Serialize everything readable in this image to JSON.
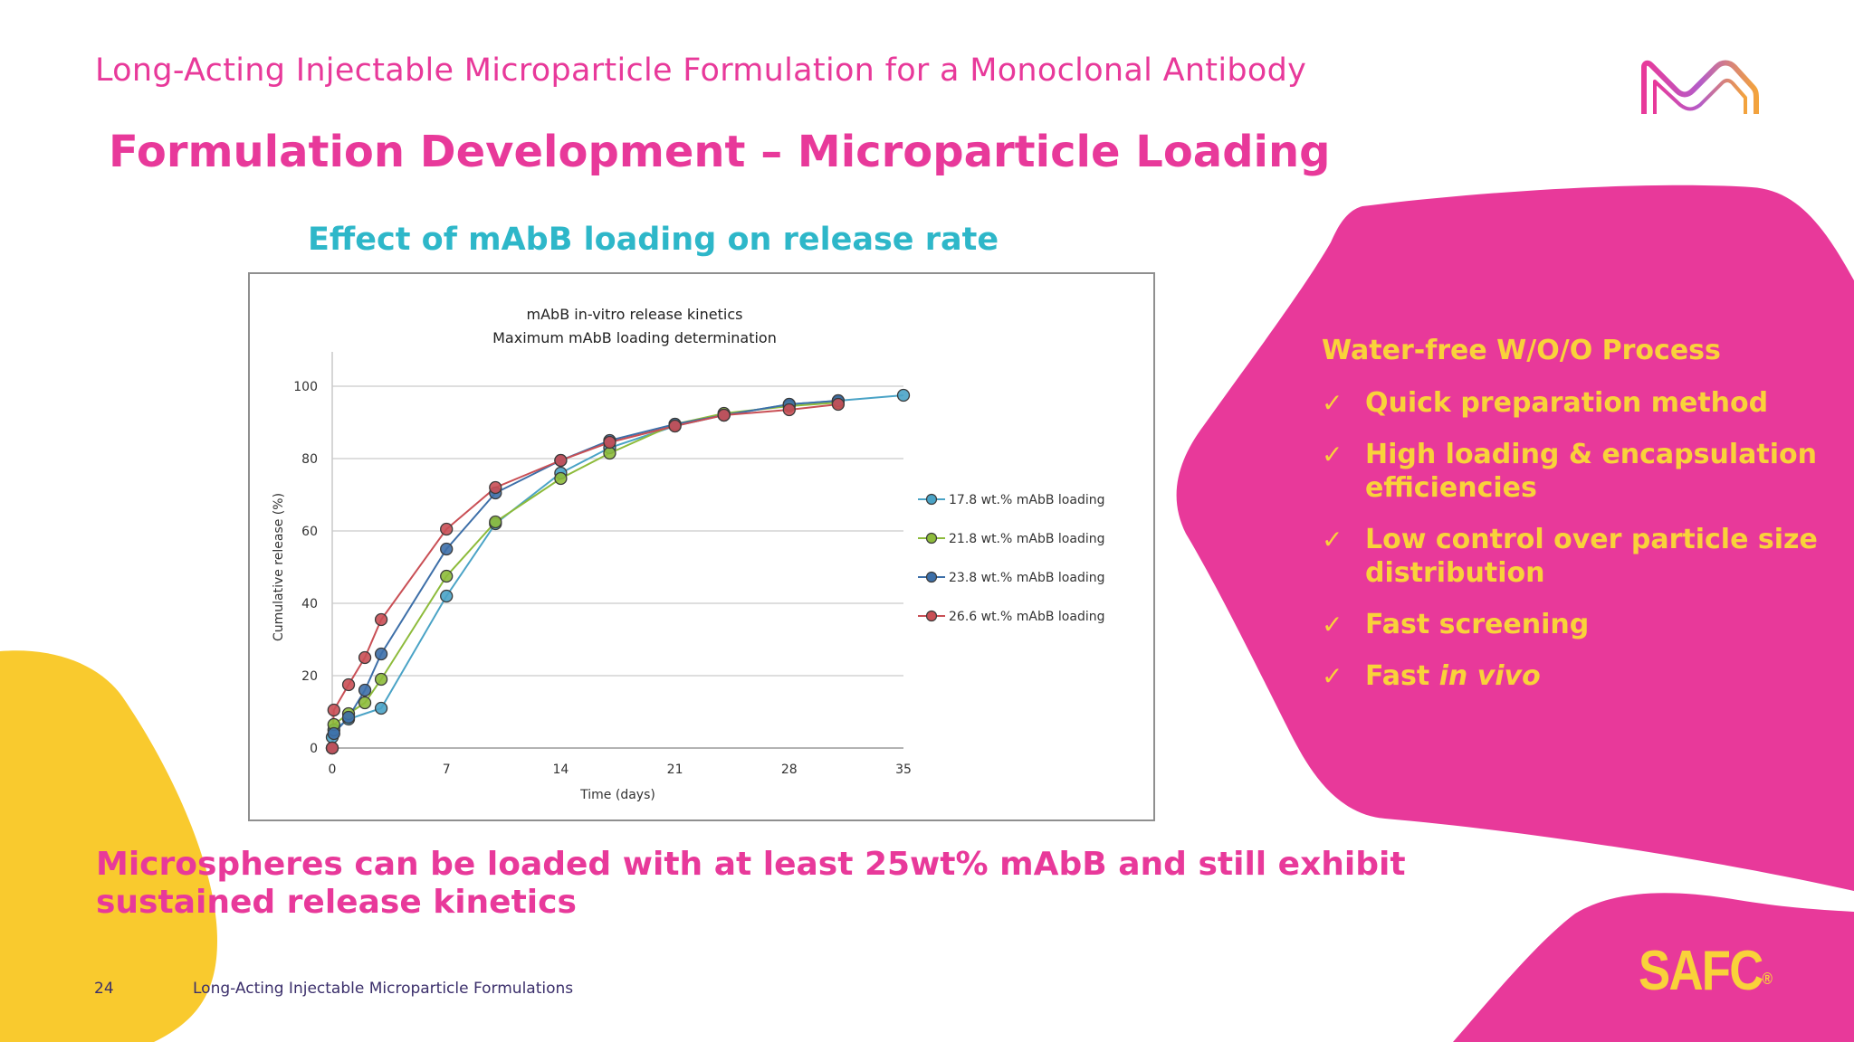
{
  "header": {
    "title": "Long-Acting Injectable Microparticle Formulation for a Monoclonal Antibody"
  },
  "slide": {
    "title": "Formulation Development – Microparticle Loading",
    "chart_heading": "Effect of mAbB loading on release rate",
    "conclusion": "Microspheres can be loaded with at least 25wt% mAbB and still exhibit sustained release kinetics"
  },
  "panel": {
    "title": "Water-free W/O/O Process",
    "check_symbol": "✓",
    "bullets": [
      {
        "text": "Quick preparation method"
      },
      {
        "text": "High loading & encapsulation efficiencies"
      },
      {
        "text": "Low control over particle size distribution"
      },
      {
        "text": "Fast screening"
      },
      {
        "text_plain": "Fast ",
        "text_italic": "in vivo"
      }
    ]
  },
  "footer": {
    "page_number": "24",
    "text": "Long-Acting Injectable Microparticle Formulations",
    "brand": "SAFC",
    "brand_mark": "®"
  },
  "colors": {
    "magenta": "#e8399a",
    "yellow": "#f9d23a",
    "teal": "#2eb7c9",
    "footer_text": "#3b2f6b"
  },
  "icons": {
    "logo": "merck-m-logo-icon"
  },
  "chart_data": {
    "type": "line",
    "title": "mAbB in-vitro release kinetics",
    "subtitle": "Maximum mAbB loading determination",
    "xlabel": "Time (days)",
    "ylabel": "Cumulative release (%)",
    "xlim": [
      0,
      35
    ],
    "ylim": [
      0,
      100
    ],
    "x_ticks": [
      0,
      7,
      14,
      21,
      28,
      35
    ],
    "y_ticks": [
      0,
      20,
      40,
      60,
      80,
      100
    ],
    "grid": "horizontal",
    "legend_position": "right",
    "series": [
      {
        "name": "17.8 wt.% mAbB loading",
        "color": "#4aa3c6",
        "x": [
          0,
          0.1,
          1,
          3,
          7,
          10,
          14,
          17,
          21,
          24,
          28,
          31,
          35
        ],
        "y": [
          3,
          5,
          8,
          11,
          42,
          62,
          76,
          83,
          89,
          92,
          95,
          96,
          97.5
        ]
      },
      {
        "name": "21.8 wt.% mAbB loading",
        "color": "#8dbb3b",
        "x": [
          0,
          0.1,
          1,
          2,
          3,
          7,
          10,
          14,
          17,
          21,
          24,
          28,
          31
        ],
        "y": [
          0,
          6.5,
          9.5,
          12.5,
          19,
          47.5,
          62.5,
          74.5,
          81.5,
          89.5,
          92.5,
          94.5,
          95.5
        ]
      },
      {
        "name": "23.8 wt.% mAbB loading",
        "color": "#3d6fa8",
        "x": [
          0,
          0.1,
          1,
          2,
          3,
          7,
          10,
          14,
          17,
          21,
          24,
          28,
          31
        ],
        "y": [
          0,
          4,
          8.5,
          16,
          26,
          55,
          70.5,
          79.5,
          85,
          89.5,
          92,
          95,
          96
        ]
      },
      {
        "name": "26.6 wt.% mAbB loading",
        "color": "#c94f55",
        "x": [
          0,
          0.1,
          1,
          2,
          3,
          7,
          10,
          14,
          17,
          21,
          24,
          28,
          31
        ],
        "y": [
          0,
          10.5,
          17.5,
          25,
          35.5,
          60.5,
          72,
          79.5,
          84.5,
          89,
          92,
          93.5,
          95
        ]
      }
    ]
  }
}
